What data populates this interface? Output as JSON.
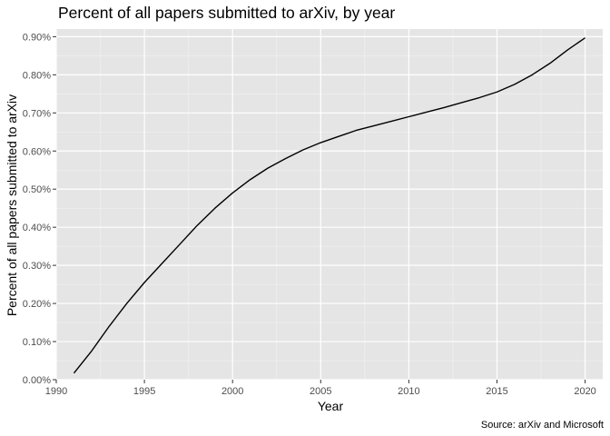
{
  "chart_data": {
    "type": "line",
    "title": "Percent of all papers submitted to arXiv, by year",
    "xlabel": "Year",
    "ylabel": "Percent of all papers submitted to arXiv",
    "caption": "Source: arXiv and Microsoft",
    "xlim": [
      1990,
      2021
    ],
    "ylim": [
      0,
      0.0092
    ],
    "x_ticks": [
      1990,
      1995,
      2000,
      2005,
      2010,
      2015,
      2020
    ],
    "x_tick_labels": [
      "1990",
      "1995",
      "2000",
      "2005",
      "2010",
      "2015",
      "2020"
    ],
    "y_ticks": [
      0,
      0.001,
      0.002,
      0.003,
      0.004,
      0.005,
      0.006,
      0.007,
      0.008,
      0.009
    ],
    "y_tick_labels": [
      "0.00%",
      "0.10%",
      "0.20%",
      "0.30%",
      "0.40%",
      "0.50%",
      "0.60%",
      "0.70%",
      "0.80%",
      "0.90%"
    ],
    "grid": true,
    "colors": {
      "panel_background": "#e5e5e5",
      "grid_major": "#ffffff",
      "grid_minor": "#f2f2f2",
      "line": "#000000",
      "tick_text": "#4d4d4d"
    },
    "series": [
      {
        "x": [
          1991,
          1992,
          1993,
          1994,
          1995,
          1996,
          1997,
          1998,
          1999,
          2000,
          2001,
          2002,
          2003,
          2004,
          2005,
          2006,
          2007,
          2008,
          2009,
          2010,
          2011,
          2012,
          2013,
          2014,
          2015,
          2016,
          2017,
          2018,
          2019,
          2020
        ],
        "y": [
          0.00017,
          0.00075,
          0.0014,
          0.002,
          0.00255,
          0.00305,
          0.00355,
          0.00405,
          0.0045,
          0.0049,
          0.00525,
          0.00555,
          0.0058,
          0.00603,
          0.00622,
          0.00638,
          0.00654,
          0.00666,
          0.00678,
          0.0069,
          0.00702,
          0.00714,
          0.00727,
          0.0074,
          0.00755,
          0.00775,
          0.008,
          0.0083,
          0.00865,
          0.00897
        ]
      }
    ]
  }
}
